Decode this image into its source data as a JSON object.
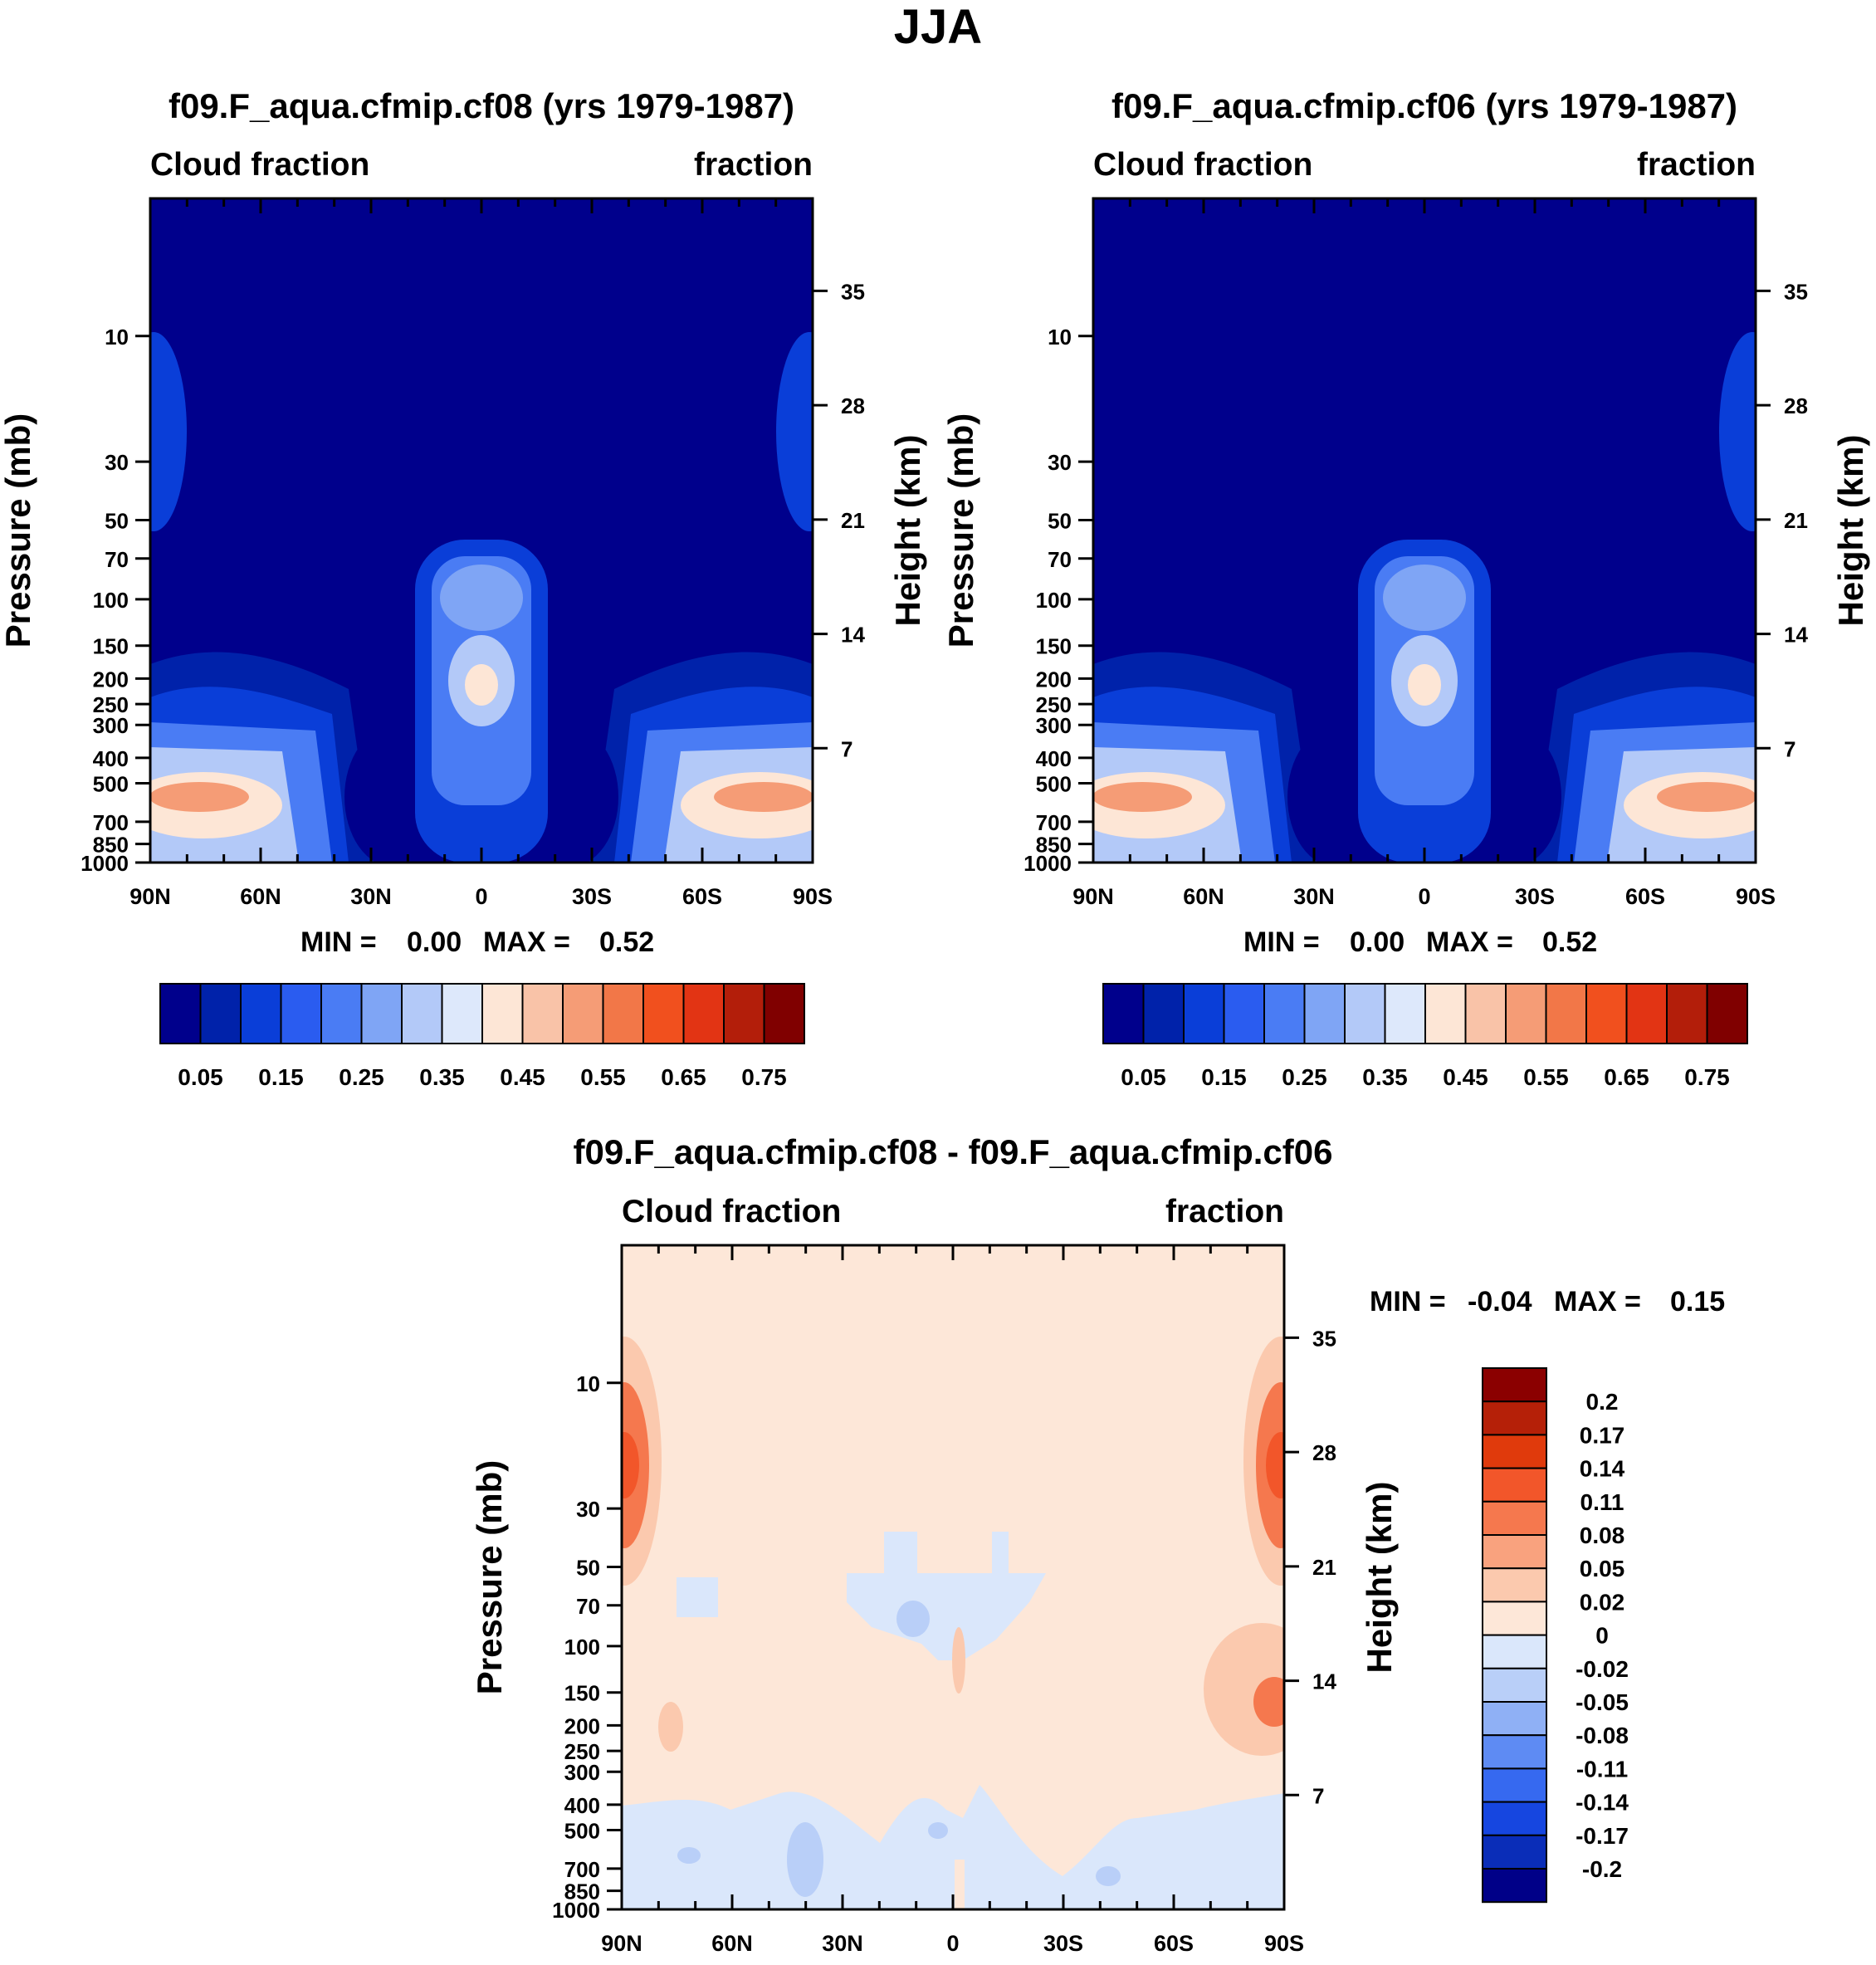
{
  "figure": {
    "title": "JJA"
  },
  "colors": {
    "frame": "#000000",
    "background": "#ffffff"
  },
  "scales": {
    "field": {
      "colors": [
        "#00008c",
        "#0022aa",
        "#0a3ed8",
        "#2a5cf0",
        "#4a7cf4",
        "#7fa5f5",
        "#b3c9f8",
        "#dde8fb",
        "#fde6d6",
        "#f9c3a8",
        "#f59c76",
        "#f27748",
        "#f1501e",
        "#e23414",
        "#b31e0a",
        "#800000"
      ],
      "tick_labels": [
        "0.05",
        "0.15",
        "0.25",
        "0.35",
        "0.45",
        "0.55",
        "0.65",
        "0.75"
      ]
    },
    "diff": {
      "colors_top_to_bottom": [
        "#8b0000",
        "#b52008",
        "#e03a0c",
        "#f2562a",
        "#f5784e",
        "#f9a27e",
        "#fbc9ae",
        "#fde7d8",
        "#dae7fb",
        "#b9cff8",
        "#8fb0f5",
        "#5e8bf3",
        "#3669f0",
        "#1646e0",
        "#0a2db8",
        "#000088"
      ],
      "tick_labels": [
        "0.2",
        "0.17",
        "0.14",
        "0.11",
        "0.08",
        "0.05",
        "0.02",
        "0",
        "-0.02",
        "-0.05",
        "-0.08",
        "-0.11",
        "-0.14",
        "-0.17",
        "-0.2"
      ]
    }
  },
  "chart_data": [
    {
      "type": "contour",
      "id": "panel_cf08",
      "title": "f09.F_aqua.cfmip.cf08 (yrs 1979-1987)",
      "left_string": "Cloud fraction",
      "right_string": "fraction",
      "ylabel": "Pressure (mb)",
      "ylabel_right": "Height (km)",
      "x_tick_labels": [
        "90N",
        "60N",
        "30N",
        "0",
        "30S",
        "60S",
        "90S"
      ],
      "x_values": [
        90,
        60,
        30,
        0,
        -30,
        -60,
        -90
      ],
      "y_ticks": [
        10,
        30,
        50,
        70,
        100,
        150,
        200,
        250,
        300,
        400,
        500,
        700,
        850,
        1000
      ],
      "y_right_ticks": [
        35,
        28,
        21,
        14,
        7
      ],
      "ylim": [
        1000,
        3
      ],
      "min": 0.0,
      "max": 0.52,
      "min_label": "MIN =",
      "min_value": "0.00",
      "max_label": "MAX =",
      "max_value": "0.52",
      "colorbar": "field"
    },
    {
      "type": "contour",
      "id": "panel_cf06",
      "title": "f09.F_aqua.cfmip.cf06 (yrs 1979-1987)",
      "left_string": "Cloud fraction",
      "right_string": "fraction",
      "ylabel": "Pressure (mb)",
      "ylabel_right": "Height (km)",
      "x_tick_labels": [
        "90N",
        "60N",
        "30N",
        "0",
        "30S",
        "60S",
        "90S"
      ],
      "x_values": [
        90,
        60,
        30,
        0,
        -30,
        -60,
        -90
      ],
      "y_ticks": [
        10,
        30,
        50,
        70,
        100,
        150,
        200,
        250,
        300,
        400,
        500,
        700,
        850,
        1000
      ],
      "y_right_ticks": [
        35,
        28,
        21,
        14,
        7
      ],
      "ylim": [
        1000,
        3
      ],
      "min": 0.0,
      "max": 0.52,
      "min_label": "MIN =",
      "min_value": "0.00",
      "max_label": "MAX =",
      "max_value": "0.52",
      "colorbar": "field"
    },
    {
      "type": "contour",
      "id": "panel_diff",
      "title": "f09.F_aqua.cfmip.cf08 - f09.F_aqua.cfmip.cf06",
      "left_string": "Cloud fraction",
      "right_string": "fraction",
      "ylabel": "Pressure (mb)",
      "ylabel_right": "Height (km)",
      "x_tick_labels": [
        "90N",
        "60N",
        "30N",
        "0",
        "30S",
        "60S",
        "90S"
      ],
      "x_values": [
        90,
        60,
        30,
        0,
        -30,
        -60,
        -90
      ],
      "y_ticks": [
        10,
        30,
        50,
        70,
        100,
        150,
        200,
        250,
        300,
        400,
        500,
        700,
        850,
        1000
      ],
      "y_right_ticks": [
        35,
        28,
        21,
        14,
        7
      ],
      "ylim": [
        1000,
        3
      ],
      "min": -0.04,
      "max": 0.15,
      "min_label": "MIN =",
      "min_value": "-0.04",
      "max_label": "MAX =",
      "max_value": "0.15",
      "colorbar": "diff"
    }
  ]
}
